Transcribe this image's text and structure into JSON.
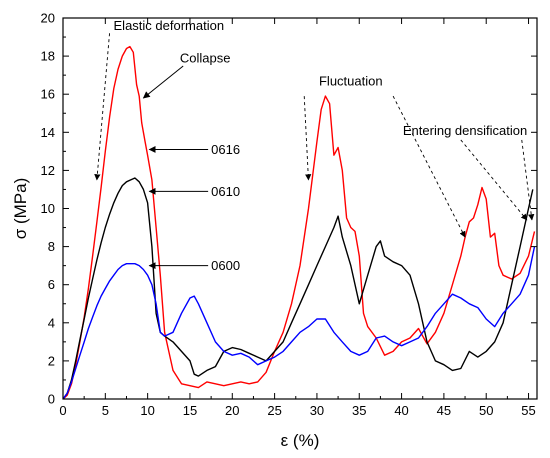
{
  "chart_data": {
    "type": "line",
    "xlabel": "ε (%)",
    "ylabel": "σ (MPa)",
    "xlim": [
      0,
      56
    ],
    "ylim": [
      0,
      20
    ],
    "x_ticks": [
      0,
      5,
      10,
      15,
      20,
      25,
      30,
      35,
      40,
      45,
      50,
      55
    ],
    "y_ticks": [
      0,
      2,
      4,
      6,
      8,
      10,
      12,
      14,
      16,
      18,
      20
    ],
    "grid": false,
    "series": [
      {
        "name": "0616",
        "color": "#ff0000",
        "points": [
          [
            0,
            0
          ],
          [
            0.5,
            0.2
          ],
          [
            1,
            0.8
          ],
          [
            1.5,
            1.8
          ],
          [
            2,
            3
          ],
          [
            2.5,
            4.3
          ],
          [
            3,
            5.8
          ],
          [
            3.5,
            7.5
          ],
          [
            4,
            9.3
          ],
          [
            4.5,
            11.1
          ],
          [
            5,
            13
          ],
          [
            5.5,
            14.8
          ],
          [
            6,
            16.3
          ],
          [
            6.5,
            17.3
          ],
          [
            7,
            18
          ],
          [
            7.5,
            18.4
          ],
          [
            7.9,
            18.5
          ],
          [
            8.3,
            18.2
          ],
          [
            8.7,
            16.5
          ],
          [
            9,
            15.9
          ],
          [
            9.3,
            14.5
          ],
          [
            9.7,
            13.5
          ],
          [
            10,
            12.8
          ],
          [
            10.5,
            11.5
          ],
          [
            11,
            9
          ],
          [
            11.5,
            6.5
          ],
          [
            12,
            3.5
          ],
          [
            12.5,
            2.5
          ],
          [
            13,
            1.5
          ],
          [
            14,
            0.8
          ],
          [
            15,
            0.7
          ],
          [
            16,
            0.6
          ],
          [
            17,
            0.9
          ],
          [
            18,
            0.8
          ],
          [
            19,
            0.7
          ],
          [
            20,
            0.8
          ],
          [
            21,
            0.9
          ],
          [
            22,
            0.8
          ],
          [
            23,
            0.9
          ],
          [
            24,
            1.4
          ],
          [
            25,
            2.5
          ],
          [
            26,
            3.5
          ],
          [
            27,
            5
          ],
          [
            28,
            7
          ],
          [
            29,
            10
          ],
          [
            30,
            13.5
          ],
          [
            30.5,
            15.2
          ],
          [
            31,
            15.9
          ],
          [
            31.5,
            15.5
          ],
          [
            32,
            12.8
          ],
          [
            32.5,
            13.2
          ],
          [
            33,
            12
          ],
          [
            33.5,
            9.5
          ],
          [
            34,
            9
          ],
          [
            34.5,
            8.8
          ],
          [
            35,
            7.5
          ],
          [
            35.5,
            4.5
          ],
          [
            36,
            3.8
          ],
          [
            37,
            3.2
          ],
          [
            38,
            2.3
          ],
          [
            39,
            2.5
          ],
          [
            40,
            3
          ],
          [
            41,
            3.2
          ],
          [
            42,
            3.7
          ],
          [
            43,
            2.9
          ],
          [
            44,
            3.5
          ],
          [
            45,
            4.5
          ],
          [
            46,
            6
          ],
          [
            47,
            7.5
          ],
          [
            47.5,
            8.5
          ],
          [
            48,
            9.3
          ],
          [
            48.5,
            9.5
          ],
          [
            49,
            10.2
          ],
          [
            49.5,
            11.1
          ],
          [
            50,
            10.5
          ],
          [
            50.5,
            8.5
          ],
          [
            51,
            8.7
          ],
          [
            51.5,
            7
          ],
          [
            52,
            6.5
          ],
          [
            53,
            6.3
          ],
          [
            54,
            6.6
          ],
          [
            55,
            7.5
          ],
          [
            55.7,
            8.8
          ]
        ]
      },
      {
        "name": "0610",
        "color": "#000000",
        "points": [
          [
            0,
            0
          ],
          [
            0.5,
            0.3
          ],
          [
            1,
            1
          ],
          [
            1.5,
            2
          ],
          [
            2,
            3.1
          ],
          [
            2.5,
            4.2
          ],
          [
            3,
            5.3
          ],
          [
            3.5,
            6.3
          ],
          [
            4,
            7.3
          ],
          [
            4.5,
            8.2
          ],
          [
            5,
            9
          ],
          [
            5.5,
            9.7
          ],
          [
            6,
            10.3
          ],
          [
            6.5,
            10.8
          ],
          [
            7,
            11.2
          ],
          [
            7.5,
            11.4
          ],
          [
            8,
            11.5
          ],
          [
            8.5,
            11.6
          ],
          [
            9,
            11.4
          ],
          [
            9.5,
            11
          ],
          [
            10,
            10.3
          ],
          [
            10.5,
            8
          ],
          [
            11,
            4.5
          ],
          [
            11.5,
            3.5
          ],
          [
            12,
            3.3
          ],
          [
            13,
            3
          ],
          [
            14,
            2.5
          ],
          [
            15,
            2
          ],
          [
            15.5,
            1.3
          ],
          [
            16,
            1.2
          ],
          [
            17,
            1.5
          ],
          [
            18,
            1.7
          ],
          [
            19,
            2.5
          ],
          [
            20,
            2.7
          ],
          [
            21,
            2.6
          ],
          [
            22,
            2.4
          ],
          [
            23,
            2.2
          ],
          [
            24,
            2
          ],
          [
            25,
            2.5
          ],
          [
            26,
            3
          ],
          [
            27,
            4
          ],
          [
            28,
            5
          ],
          [
            29,
            6
          ],
          [
            30,
            7
          ],
          [
            31,
            8
          ],
          [
            32,
            9
          ],
          [
            32.5,
            9.6
          ],
          [
            33,
            8.5
          ],
          [
            34,
            7
          ],
          [
            35,
            5
          ],
          [
            36,
            6.5
          ],
          [
            37,
            8
          ],
          [
            37.5,
            8.3
          ],
          [
            38,
            7.5
          ],
          [
            39,
            7.2
          ],
          [
            40,
            7
          ],
          [
            41,
            6.5
          ],
          [
            42,
            5
          ],
          [
            43,
            3
          ],
          [
            44,
            2
          ],
          [
            45,
            1.8
          ],
          [
            46,
            1.5
          ],
          [
            47,
            1.6
          ],
          [
            48,
            2.5
          ],
          [
            49,
            2.2
          ],
          [
            50,
            2.5
          ],
          [
            51,
            3
          ],
          [
            52,
            4
          ],
          [
            53,
            6
          ],
          [
            54,
            8
          ],
          [
            55,
            10
          ],
          [
            55.5,
            11
          ]
        ]
      },
      {
        "name": "0600",
        "color": "#0000ff",
        "points": [
          [
            0,
            0
          ],
          [
            0.5,
            0.3
          ],
          [
            1,
            0.9
          ],
          [
            1.5,
            1.6
          ],
          [
            2,
            2.3
          ],
          [
            2.5,
            3
          ],
          [
            3,
            3.7
          ],
          [
            3.5,
            4.3
          ],
          [
            4,
            4.9
          ],
          [
            4.5,
            5.4
          ],
          [
            5,
            5.8
          ],
          [
            5.5,
            6.2
          ],
          [
            6,
            6.5
          ],
          [
            6.5,
            6.8
          ],
          [
            7,
            7
          ],
          [
            7.5,
            7.1
          ],
          [
            8,
            7.1
          ],
          [
            8.5,
            7.1
          ],
          [
            9,
            7
          ],
          [
            9.5,
            6.8
          ],
          [
            10,
            6.5
          ],
          [
            10.5,
            6
          ],
          [
            11,
            5
          ],
          [
            11.5,
            3.5
          ],
          [
            12,
            3.3
          ],
          [
            13,
            3.5
          ],
          [
            14,
            4.5
          ],
          [
            15,
            5.3
          ],
          [
            15.5,
            5.4
          ],
          [
            16,
            5
          ],
          [
            17,
            4
          ],
          [
            18,
            3
          ],
          [
            19,
            2.5
          ],
          [
            20,
            2.3
          ],
          [
            21,
            2.4
          ],
          [
            22,
            2.2
          ],
          [
            23,
            1.8
          ],
          [
            24,
            2
          ],
          [
            25,
            2.2
          ],
          [
            26,
            2.5
          ],
          [
            27,
            3
          ],
          [
            28,
            3.5
          ],
          [
            29,
            3.8
          ],
          [
            30,
            4.2
          ],
          [
            31,
            4.2
          ],
          [
            32,
            3.5
          ],
          [
            33,
            3
          ],
          [
            34,
            2.5
          ],
          [
            35,
            2.3
          ],
          [
            36,
            2.5
          ],
          [
            37,
            3.2
          ],
          [
            38,
            3.3
          ],
          [
            39,
            3
          ],
          [
            40,
            2.8
          ],
          [
            41,
            3
          ],
          [
            42,
            3.2
          ],
          [
            43,
            3.8
          ],
          [
            44,
            4.5
          ],
          [
            45,
            5
          ],
          [
            46,
            5.5
          ],
          [
            47,
            5.3
          ],
          [
            48,
            5
          ],
          [
            49,
            4.8
          ],
          [
            50,
            4.2
          ],
          [
            51,
            3.8
          ],
          [
            52,
            4.5
          ],
          [
            53,
            5
          ],
          [
            54,
            5.5
          ],
          [
            55,
            6.5
          ],
          [
            55.7,
            8
          ]
        ]
      }
    ],
    "annotations": [
      {
        "text": "Elastic deformation",
        "anchor": [
          12.5,
          19.6
        ],
        "targets": [
          [
            5.5,
            19.2
          ],
          [
            4,
            11.5
          ]
        ]
      },
      {
        "text": "Collapse",
        "anchor": [
          16.8,
          17.9
        ],
        "targets": [
          [
            9.5,
            15.8
          ]
        ]
      },
      {
        "text": "Fluctuation",
        "anchor": [
          34,
          16.7
        ],
        "targets": [
          [
            28.5,
            15.9
          ],
          [
            29,
            11.5
          ],
          [
            39,
            15.9
          ],
          [
            47.5,
            8.5
          ]
        ]
      },
      {
        "text": "Entering densification",
        "anchor": [
          47.5,
          14.1
        ],
        "targets": [
          [
            47,
            13.6
          ],
          [
            54.8,
            9.4
          ],
          [
            54.2,
            13.6
          ],
          [
            55.4,
            9.4
          ]
        ]
      },
      {
        "text": "0616",
        "anchor": [
          17.5,
          13.1
        ],
        "targets": [
          [
            10.2,
            13.1
          ]
        ]
      },
      {
        "text": "0610",
        "anchor": [
          17.5,
          10.9
        ],
        "targets": [
          [
            10.2,
            10.9
          ]
        ]
      },
      {
        "text": "0600",
        "anchor": [
          17.5,
          7
        ],
        "targets": [
          [
            10.2,
            7
          ]
        ]
      }
    ]
  }
}
